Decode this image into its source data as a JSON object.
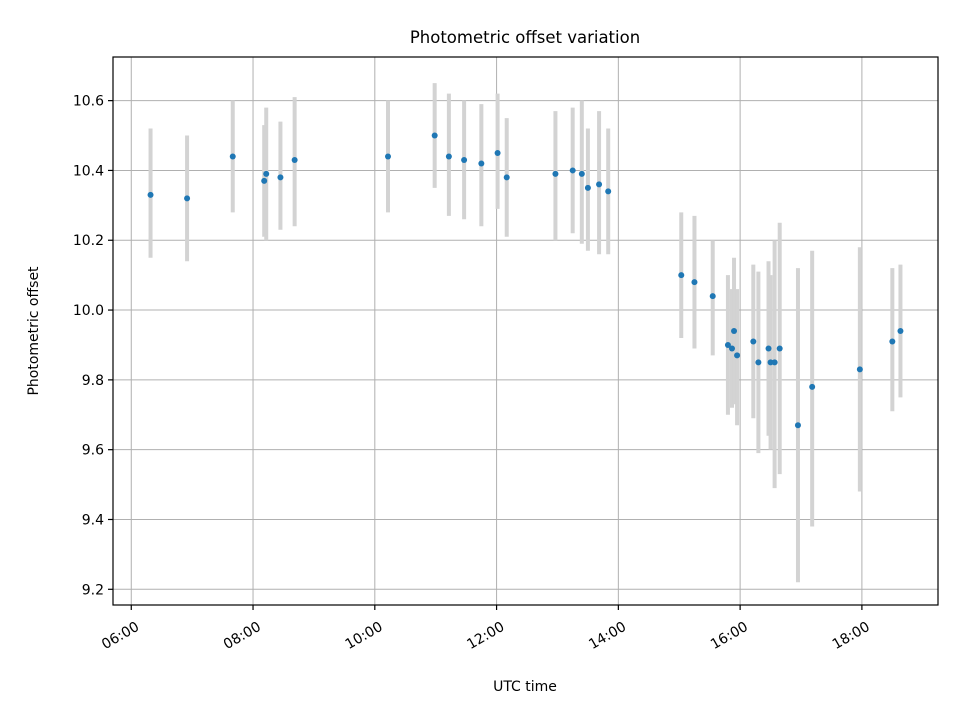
{
  "chart_data": {
    "type": "scatter",
    "title": "Photometric offset variation",
    "xlabel": "UTC time",
    "ylabel": "Photometric offset",
    "grid": true,
    "xlim": [
      "05:42",
      "19:15"
    ],
    "ylim": [
      9.155,
      10.725
    ],
    "xticks": [
      "06:00",
      "08:00",
      "10:00",
      "12:00",
      "14:00",
      "16:00",
      "18:00"
    ],
    "yticks": [
      9.2,
      9.4,
      9.6,
      9.8,
      10.0,
      10.2,
      10.4,
      10.6
    ],
    "point_color": "#1f77b4",
    "errorbar_color": "#d3d3d3",
    "points": [
      {
        "x": "06:19",
        "y": 10.33,
        "ylo": 10.15,
        "yhi": 10.52
      },
      {
        "x": "06:55",
        "y": 10.32,
        "ylo": 10.14,
        "yhi": 10.5
      },
      {
        "x": "07:40",
        "y": 10.44,
        "ylo": 10.28,
        "yhi": 10.6
      },
      {
        "x": "08:11",
        "y": 10.37,
        "ylo": 10.21,
        "yhi": 10.53
      },
      {
        "x": "08:13",
        "y": 10.39,
        "ylo": 10.2,
        "yhi": 10.58
      },
      {
        "x": "08:27",
        "y": 10.38,
        "ylo": 10.23,
        "yhi": 10.54
      },
      {
        "x": "08:41",
        "y": 10.43,
        "ylo": 10.24,
        "yhi": 10.61
      },
      {
        "x": "10:13",
        "y": 10.44,
        "ylo": 10.28,
        "yhi": 10.6
      },
      {
        "x": "10:59",
        "y": 10.5,
        "ylo": 10.35,
        "yhi": 10.65
      },
      {
        "x": "11:13",
        "y": 10.44,
        "ylo": 10.27,
        "yhi": 10.62
      },
      {
        "x": "11:28",
        "y": 10.43,
        "ylo": 10.26,
        "yhi": 10.6
      },
      {
        "x": "11:45",
        "y": 10.42,
        "ylo": 10.24,
        "yhi": 10.59
      },
      {
        "x": "12:01",
        "y": 10.45,
        "ylo": 10.29,
        "yhi": 10.62
      },
      {
        "x": "12:10",
        "y": 10.38,
        "ylo": 10.21,
        "yhi": 10.55
      },
      {
        "x": "12:58",
        "y": 10.39,
        "ylo": 10.2,
        "yhi": 10.57
      },
      {
        "x": "13:15",
        "y": 10.4,
        "ylo": 10.22,
        "yhi": 10.58
      },
      {
        "x": "13:24",
        "y": 10.39,
        "ylo": 10.19,
        "yhi": 10.6
      },
      {
        "x": "13:30",
        "y": 10.35,
        "ylo": 10.17,
        "yhi": 10.52
      },
      {
        "x": "13:41",
        "y": 10.36,
        "ylo": 10.16,
        "yhi": 10.57
      },
      {
        "x": "13:50",
        "y": 10.34,
        "ylo": 10.16,
        "yhi": 10.52
      },
      {
        "x": "15:02",
        "y": 10.1,
        "ylo": 9.92,
        "yhi": 10.28
      },
      {
        "x": "15:15",
        "y": 10.08,
        "ylo": 9.89,
        "yhi": 10.27
      },
      {
        "x": "15:33",
        "y": 10.04,
        "ylo": 9.87,
        "yhi": 10.2
      },
      {
        "x": "15:48",
        "y": 9.9,
        "ylo": 9.7,
        "yhi": 10.1
      },
      {
        "x": "15:52",
        "y": 9.89,
        "ylo": 9.72,
        "yhi": 10.06
      },
      {
        "x": "15:54",
        "y": 9.94,
        "ylo": 9.73,
        "yhi": 10.15
      },
      {
        "x": "15:57",
        "y": 9.87,
        "ylo": 9.67,
        "yhi": 10.06
      },
      {
        "x": "16:13",
        "y": 9.91,
        "ylo": 9.69,
        "yhi": 10.13
      },
      {
        "x": "16:18",
        "y": 9.85,
        "ylo": 9.59,
        "yhi": 10.11
      },
      {
        "x": "16:28",
        "y": 9.89,
        "ylo": 9.64,
        "yhi": 10.14
      },
      {
        "x": "16:30",
        "y": 9.85,
        "ylo": 9.6,
        "yhi": 10.1
      },
      {
        "x": "16:34",
        "y": 9.85,
        "ylo": 9.49,
        "yhi": 10.2
      },
      {
        "x": "16:39",
        "y": 9.89,
        "ylo": 9.53,
        "yhi": 10.25
      },
      {
        "x": "16:57",
        "y": 9.67,
        "ylo": 9.22,
        "yhi": 10.12
      },
      {
        "x": "17:11",
        "y": 9.78,
        "ylo": 9.38,
        "yhi": 10.17
      },
      {
        "x": "17:58",
        "y": 9.83,
        "ylo": 9.48,
        "yhi": 10.18
      },
      {
        "x": "18:30",
        "y": 9.91,
        "ylo": 9.71,
        "yhi": 10.12
      },
      {
        "x": "18:38",
        "y": 9.94,
        "ylo": 9.75,
        "yhi": 10.13
      }
    ]
  }
}
